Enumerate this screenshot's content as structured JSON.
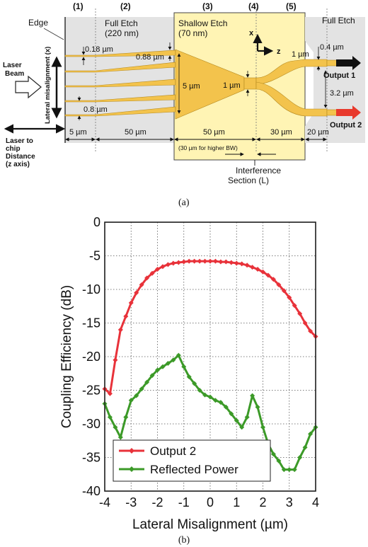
{
  "figure_a": {
    "caption": "(a)",
    "sections": [
      "(1)",
      "(2)",
      "(3)",
      "(4)",
      "(5)"
    ],
    "edge_label": "Edge",
    "laser_beam_label": [
      "Laser",
      "Beam"
    ],
    "lateral_axis_label": "Lateral misalignment (x)",
    "full_etch_left": [
      "Full Etch",
      "(220 nm)"
    ],
    "shallow_etch": [
      "Shallow Etch",
      "(70 nm)"
    ],
    "full_etch_right": "Full Etch",
    "axis_x": "x",
    "axis_z": "z",
    "dims": {
      "tip_width": "0.18 µm",
      "taper_end": "0.88 µm",
      "spacing": "0.8 µm",
      "mmi_width": "5 µm",
      "mmi_out": "1 µm",
      "arm_width": "1 µm",
      "out_gap_small": "0.4 µm",
      "out_sep": "3.2 µm"
    },
    "outputs": [
      "Output 1",
      "Output 2"
    ],
    "lengths": [
      "5 µm",
      "50 µm",
      "50 µm",
      "30 µm",
      "20 µm"
    ],
    "bw_note": "(30 µm for higher BW)",
    "laser_distance": [
      "Laser to",
      "chip",
      "Distance",
      "(z axis)"
    ],
    "interference": [
      "Interference",
      "Section (L)"
    ],
    "colors": {
      "full_etch_bg": "#e3e3e3",
      "shallow_bg": "#fff4b4",
      "waveguide": "#f3c34c",
      "output1_arrow": "#111111",
      "output2_arrow": "#e8392c"
    }
  },
  "figure_b": {
    "caption": "(b)",
    "chart_data": {
      "type": "line",
      "xlabel": "Lateral Misalignment (µm)",
      "ylabel": "Coupling Efficiency (dB)",
      "xlim": [
        -4,
        4
      ],
      "ylim": [
        -40,
        0
      ],
      "xticks": [
        -4,
        -3,
        -2,
        -1,
        0,
        1,
        2,
        3,
        4
      ],
      "yticks": [
        0,
        -5,
        -10,
        -15,
        -20,
        -25,
        -30,
        -35,
        -40
      ],
      "grid": true,
      "legend_position": "bottom-left",
      "series": [
        {
          "name": "Output 2",
          "color": "#e8323a",
          "x": [
            -4,
            -3.8,
            -3.6,
            -3.4,
            -3.2,
            -3.0,
            -2.8,
            -2.6,
            -2.4,
            -2.2,
            -2.0,
            -1.8,
            -1.6,
            -1.4,
            -1.2,
            -1.0,
            -0.8,
            -0.6,
            -0.4,
            -0.2,
            0,
            0.2,
            0.4,
            0.6,
            0.8,
            1.0,
            1.2,
            1.4,
            1.6,
            1.8,
            2.0,
            2.2,
            2.4,
            2.6,
            2.8,
            3.0,
            3.2,
            3.4,
            3.6,
            3.8,
            4.0
          ],
          "y": [
            -24.8,
            -25.5,
            -20.5,
            -16.0,
            -14.0,
            -12.0,
            -10.5,
            -9.3,
            -8.3,
            -7.6,
            -7.0,
            -6.6,
            -6.3,
            -6.1,
            -6.0,
            -5.9,
            -5.8,
            -5.8,
            -5.8,
            -5.8,
            -5.8,
            -5.8,
            -5.9,
            -5.9,
            -6.0,
            -6.1,
            -6.2,
            -6.4,
            -6.7,
            -7.0,
            -7.4,
            -7.9,
            -8.5,
            -9.3,
            -10.2,
            -11.2,
            -12.4,
            -13.6,
            -15.0,
            -16.2,
            -17.0
          ]
        },
        {
          "name": "Reflected Power",
          "color": "#3c9a28",
          "x": [
            -4,
            -3.8,
            -3.6,
            -3.4,
            -3.2,
            -3.0,
            -2.8,
            -2.6,
            -2.4,
            -2.2,
            -2.0,
            -1.8,
            -1.6,
            -1.4,
            -1.2,
            -1.0,
            -0.8,
            -0.6,
            -0.4,
            -0.2,
            0,
            0.2,
            0.4,
            0.6,
            0.8,
            1.0,
            1.2,
            1.4,
            1.6,
            1.8,
            2.0,
            2.2,
            2.4,
            2.6,
            2.8,
            3.0,
            3.2,
            3.4,
            3.6,
            3.8,
            4.0
          ],
          "y": [
            -27.0,
            -29.0,
            -30.5,
            -32.0,
            -29.0,
            -26.5,
            -25.8,
            -24.8,
            -23.8,
            -22.8,
            -22.0,
            -21.5,
            -21.0,
            -20.5,
            -19.8,
            -21.5,
            -23.0,
            -24.0,
            -25.0,
            -25.7,
            -26.0,
            -26.5,
            -26.8,
            -27.5,
            -28.5,
            -29.5,
            -30.5,
            -29.0,
            -25.8,
            -27.5,
            -30.5,
            -33.0,
            -34.5,
            -35.5,
            -36.8,
            -36.8,
            -36.8,
            -35.0,
            -33.5,
            -31.5,
            -30.5
          ]
        }
      ]
    }
  }
}
